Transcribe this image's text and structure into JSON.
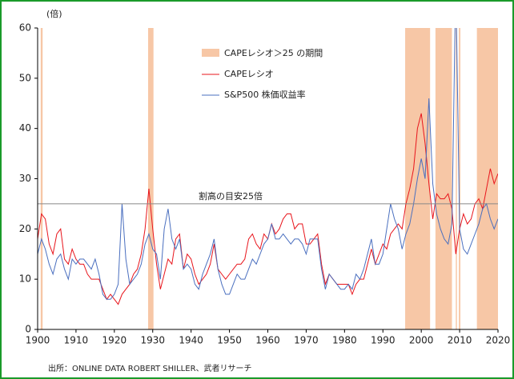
{
  "chart_data": {
    "type": "line",
    "y_unit": "(倍)",
    "source": "出所：ONLINE DATA ROBERT SHILLER、武者リサーチ",
    "x": [
      1900,
      1901,
      1902,
      1903,
      1904,
      1905,
      1906,
      1907,
      1908,
      1909,
      1910,
      1911,
      1912,
      1913,
      1914,
      1915,
      1916,
      1917,
      1918,
      1919,
      1920,
      1921,
      1922,
      1923,
      1924,
      1925,
      1926,
      1927,
      1928,
      1929,
      1930,
      1931,
      1932,
      1933,
      1934,
      1935,
      1936,
      1937,
      1938,
      1939,
      1940,
      1941,
      1942,
      1943,
      1944,
      1945,
      1946,
      1947,
      1948,
      1949,
      1950,
      1951,
      1952,
      1953,
      1954,
      1955,
      1956,
      1957,
      1958,
      1959,
      1960,
      1961,
      1962,
      1963,
      1964,
      1965,
      1966,
      1967,
      1968,
      1969,
      1970,
      1971,
      1972,
      1973,
      1974,
      1975,
      1976,
      1977,
      1978,
      1979,
      1980,
      1981,
      1982,
      1983,
      1984,
      1985,
      1986,
      1987,
      1988,
      1989,
      1990,
      1991,
      1992,
      1993,
      1994,
      1995,
      1996,
      1997,
      1998,
      1999,
      2000,
      2001,
      2002,
      2003,
      2004,
      2005,
      2006,
      2007,
      2008,
      2009,
      2010,
      2011,
      2012,
      2013,
      2014,
      2015,
      2016,
      2017,
      2018,
      2019,
      2020
    ],
    "series": [
      {
        "name": "CAPEレシオ",
        "color": "#e8141b",
        "values": [
          18,
          23,
          22,
          17,
          15,
          19,
          20,
          14,
          13,
          16,
          14,
          13,
          13,
          11,
          10,
          10,
          10,
          8,
          6,
          7,
          6,
          5,
          7,
          8,
          9,
          11,
          12,
          15,
          20,
          28,
          20,
          13,
          8,
          11,
          14,
          13,
          18,
          19,
          12,
          15,
          14,
          11,
          9,
          10,
          11,
          13,
          17,
          12,
          11,
          10,
          11,
          12,
          13,
          13,
          14,
          18,
          19,
          17,
          16,
          19,
          18,
          21,
          19,
          20,
          22,
          23,
          23,
          20,
          21,
          21,
          17,
          17,
          18,
          19,
          13,
          9,
          11,
          10,
          9,
          9,
          9,
          9,
          7,
          9,
          10,
          10,
          13,
          16,
          13,
          15,
          17,
          16,
          19,
          20,
          21,
          20,
          25,
          28,
          32,
          40,
          43,
          37,
          29,
          22,
          27,
          26,
          26,
          27,
          24,
          15,
          20,
          23,
          21,
          22,
          25,
          26,
          24,
          28,
          32,
          29,
          31
        ]
      },
      {
        "name": "S&P500 株価収益率",
        "color": "#4a6fbf",
        "values": [
          15,
          18,
          16,
          13,
          11,
          14,
          15,
          12,
          10,
          14,
          13,
          14,
          14,
          13,
          12,
          14,
          11,
          7,
          6,
          6,
          7,
          9,
          25,
          14,
          9,
          10,
          11,
          13,
          17,
          19,
          16,
          15,
          10,
          20,
          24,
          18,
          16,
          18,
          12,
          13,
          12,
          9,
          8,
          11,
          13,
          15,
          18,
          12,
          9,
          7,
          7,
          9,
          11,
          10,
          10,
          12,
          14,
          13,
          15,
          17,
          18,
          21,
          18,
          18,
          19,
          18,
          17,
          18,
          18,
          17,
          15,
          18,
          18,
          18,
          12,
          8,
          11,
          10,
          9,
          8,
          8,
          9,
          8,
          11,
          10,
          12,
          15,
          18,
          13,
          13,
          15,
          20,
          25,
          22,
          20,
          16,
          19,
          21,
          25,
          30,
          34,
          30,
          46,
          29,
          23,
          20,
          18,
          17,
          21,
          70,
          20,
          16,
          15,
          17,
          19,
          21,
          24,
          25,
          22,
          20,
          22
        ]
      }
    ],
    "shaded_periods": {
      "name": "CAPEレシオ＞25 の期間",
      "color": "#f7c7a6",
      "spans": [
        [
          1900.8,
          1901.3
        ],
        [
          1928.8,
          1930.2
        ],
        [
          1995.8,
          2002.3
        ],
        [
          2003.7,
          2008.0
        ],
        [
          2009.0,
          2009.3
        ],
        [
          2009.8,
          2010.2
        ],
        [
          2014.5,
          2020.0
        ]
      ]
    },
    "reference_line": {
      "value": 25,
      "label": "割高の目安25倍",
      "color": "#888888"
    },
    "xlim": [
      1900,
      2020
    ],
    "xticks": [
      1900,
      1910,
      1920,
      1930,
      1940,
      1950,
      1960,
      1970,
      1980,
      1990,
      2000,
      2010,
      2020
    ],
    "ylim": [
      0,
      60
    ],
    "yticks": [
      0,
      10,
      20,
      30,
      40,
      50,
      60
    ]
  }
}
